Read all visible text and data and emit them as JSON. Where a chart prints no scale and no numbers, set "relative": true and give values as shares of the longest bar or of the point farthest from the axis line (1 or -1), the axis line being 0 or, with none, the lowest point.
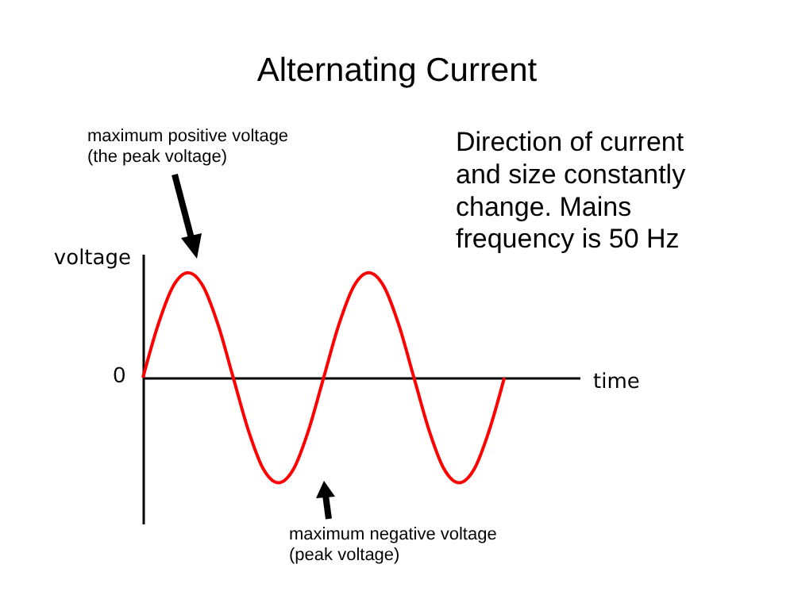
{
  "chart_data": {
    "type": "line",
    "title": "Alternating Current",
    "xlabel": "time",
    "ylabel": "voltage",
    "relative": true,
    "categories": [
      null,
      null,
      null,
      null,
      null,
      null,
      null,
      null,
      null,
      null,
      null,
      null,
      null,
      null,
      null,
      null,
      null,
      null,
      null,
      null,
      null,
      null,
      null,
      null,
      null,
      null,
      null,
      null,
      null,
      null
    ],
    "series": [
      {
        "color": "#ff0000",
        "values": [
          0,
          0.5,
          0.87,
          1,
          0.87,
          0.5,
          0,
          -0.5,
          -0.87,
          -1,
          -0.87,
          -0.5,
          0,
          0.5,
          0.87,
          1,
          0.87,
          0.5,
          0,
          -0.5,
          -0.87,
          -1,
          -0.87,
          -0.5,
          0,
          null,
          null,
          null,
          null,
          null
        ]
      }
    ],
    "annotations": [
      "maximum positive voltage\n(the peak voltage)",
      "Direction of current\nand size constantly\nchange. Mains\nfrequency is 50 Hz",
      "maximum negative voltage\n(peak voltage)",
      "0"
    ],
    "grid": false,
    "marker": "none",
    "line_style": "solid"
  }
}
